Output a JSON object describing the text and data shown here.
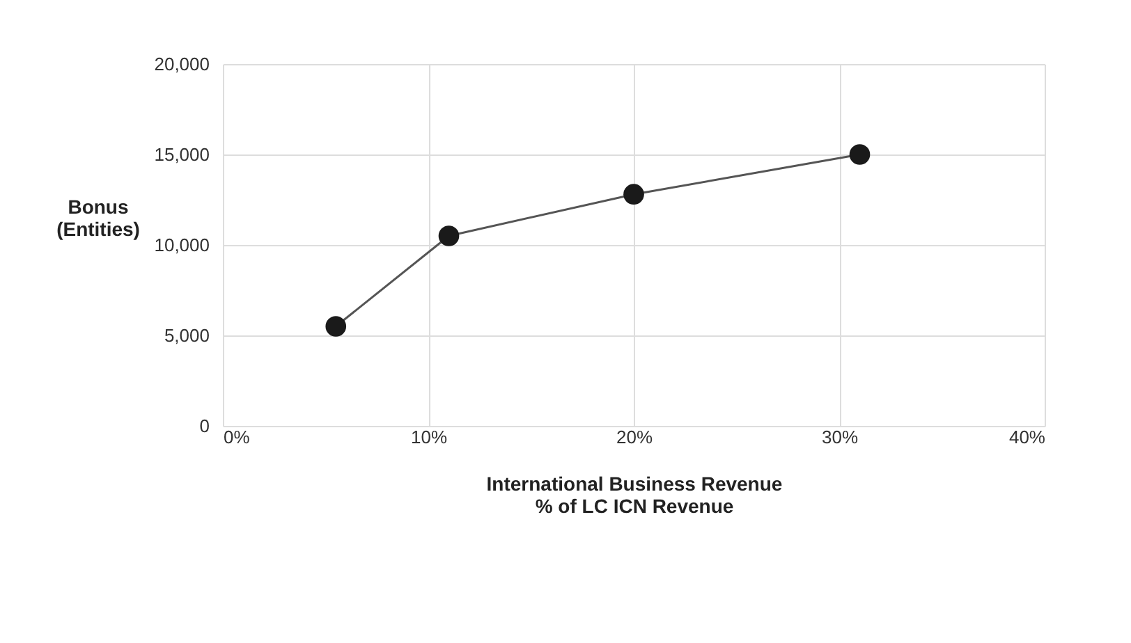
{
  "chart_data": {
    "type": "line",
    "xlabel": "International Business Revenue\n% of LC ICN Revenue",
    "ylabel": "Bonus\n(Entities)",
    "x": [
      5.5,
      11,
      20,
      31
    ],
    "series": [
      {
        "color": "#1a1a1a",
        "values": [
          5500,
          10500,
          12800,
          15000
        ]
      }
    ],
    "xlim": [
      0,
      40
    ],
    "xticks": [
      {
        "value": 0,
        "label": "0%"
      },
      {
        "value": 10,
        "label": "10%"
      },
      {
        "value": 20,
        "label": "20%"
      },
      {
        "value": 30,
        "label": "30%"
      },
      {
        "value": 40,
        "label": "40%"
      }
    ],
    "ylim": [
      0,
      20000
    ],
    "yticks": [
      {
        "value": 0,
        "label": "0"
      },
      {
        "value": 5000,
        "label": "5,000"
      },
      {
        "value": 10000,
        "label": "10,000"
      },
      {
        "value": 15000,
        "label": "15,000"
      },
      {
        "value": 20000,
        "label": "20,000"
      }
    ],
    "grid": true,
    "marker": "circle",
    "line_style": "solid"
  }
}
